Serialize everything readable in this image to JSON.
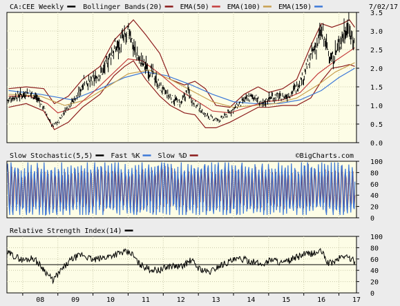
{
  "chart_data": [
    {
      "type": "line",
      "panel": "price",
      "symbol_label": "CA:CEE Weekly",
      "date_label": "7/02/17",
      "legend": [
        {
          "name": "Bollinger Bands(20)",
          "color": "#8b1a1a"
        },
        {
          "name": "EMA(50)",
          "color": "#c43c3c"
        },
        {
          "name": "EMA(100)",
          "color": "#c8a050"
        },
        {
          "name": "EMA(150)",
          "color": "#3c78d8"
        }
      ],
      "price_color": "#000000",
      "ylim": [
        0.0,
        3.5
      ],
      "y_ticks": [
        "3.5",
        "3.0",
        "2.5",
        "2.0",
        "1.5",
        "1.0",
        "0.5",
        "0.0"
      ],
      "x_range": [
        2007.55,
        2017.5
      ],
      "x_ticks": [
        "08",
        "09",
        "10",
        "11",
        "12",
        "13",
        "14",
        "15",
        "16",
        "17"
      ],
      "series": {
        "price": [
          [
            2007.6,
            1.15
          ],
          [
            2007.8,
            1.25
          ],
          [
            2008.0,
            1.3
          ],
          [
            2008.2,
            1.35
          ],
          [
            2008.4,
            1.2
          ],
          [
            2008.55,
            1.05
          ],
          [
            2008.7,
            0.7
          ],
          [
            2008.85,
            0.45
          ],
          [
            2009.0,
            0.55
          ],
          [
            2009.2,
            0.85
          ],
          [
            2009.4,
            1.1
          ],
          [
            2009.6,
            1.3
          ],
          [
            2009.75,
            1.7
          ],
          [
            2009.9,
            1.6
          ],
          [
            2010.1,
            1.75
          ],
          [
            2010.3,
            1.95
          ],
          [
            2010.5,
            2.35
          ],
          [
            2010.65,
            2.55
          ],
          [
            2010.8,
            2.7
          ],
          [
            2010.95,
            2.85
          ],
          [
            2011.05,
            3.05
          ],
          [
            2011.15,
            2.55
          ],
          [
            2011.3,
            2.25
          ],
          [
            2011.5,
            2.05
          ],
          [
            2011.7,
            1.85
          ],
          [
            2011.9,
            1.5
          ],
          [
            2012.1,
            1.3
          ],
          [
            2012.3,
            1.15
          ],
          [
            2012.5,
            1.05
          ],
          [
            2012.7,
            1.4
          ],
          [
            2012.85,
            1.1
          ],
          [
            2013.0,
            0.95
          ],
          [
            2013.2,
            0.75
          ],
          [
            2013.4,
            0.65
          ],
          [
            2013.6,
            0.6
          ],
          [
            2013.8,
            0.75
          ],
          [
            2014.0,
            0.9
          ],
          [
            2014.2,
            1.05
          ],
          [
            2014.4,
            1.2
          ],
          [
            2014.6,
            1.25
          ],
          [
            2014.8,
            1.0
          ],
          [
            2015.0,
            1.2
          ],
          [
            2015.2,
            1.25
          ],
          [
            2015.4,
            1.2
          ],
          [
            2015.6,
            1.3
          ],
          [
            2015.8,
            1.5
          ],
          [
            2016.0,
            1.8
          ],
          [
            2016.2,
            2.3
          ],
          [
            2016.35,
            2.6
          ],
          [
            2016.5,
            2.95
          ],
          [
            2016.65,
            2.6
          ],
          [
            2016.8,
            2.2
          ],
          [
            2016.95,
            2.5
          ],
          [
            2017.1,
            2.9
          ],
          [
            2017.25,
            3.15
          ],
          [
            2017.4,
            2.8
          ],
          [
            2017.45,
            2.6
          ]
        ],
        "ema50": [
          [
            2007.6,
            1.25
          ],
          [
            2008.2,
            1.25
          ],
          [
            2008.7,
            1.05
          ],
          [
            2009.0,
            0.8
          ],
          [
            2009.5,
            0.95
          ],
          [
            2010.0,
            1.35
          ],
          [
            2010.5,
            1.8
          ],
          [
            2011.0,
            2.25
          ],
          [
            2011.4,
            2.2
          ],
          [
            2011.9,
            1.85
          ],
          [
            2012.4,
            1.45
          ],
          [
            2012.9,
            1.15
          ],
          [
            2013.4,
            0.85
          ],
          [
            2013.9,
            0.8
          ],
          [
            2014.4,
            0.95
          ],
          [
            2014.9,
            1.1
          ],
          [
            2015.4,
            1.15
          ],
          [
            2015.9,
            1.35
          ],
          [
            2016.4,
            1.85
          ],
          [
            2016.9,
            2.2
          ],
          [
            2017.45,
            2.55
          ]
        ],
        "ema100": [
          [
            2007.6,
            1.3
          ],
          [
            2008.5,
            1.25
          ],
          [
            2009.2,
            1.0
          ],
          [
            2009.8,
            1.15
          ],
          [
            2010.5,
            1.55
          ],
          [
            2011.0,
            1.85
          ],
          [
            2011.6,
            1.95
          ],
          [
            2012.2,
            1.7
          ],
          [
            2012.8,
            1.4
          ],
          [
            2013.4,
            1.1
          ],
          [
            2014.0,
            0.95
          ],
          [
            2014.6,
            1.0
          ],
          [
            2015.2,
            1.05
          ],
          [
            2015.8,
            1.2
          ],
          [
            2016.4,
            1.55
          ],
          [
            2016.9,
            1.9
          ],
          [
            2017.45,
            2.15
          ]
        ],
        "ema150": [
          [
            2007.6,
            1.4
          ],
          [
            2008.5,
            1.3
          ],
          [
            2009.4,
            1.15
          ],
          [
            2010.2,
            1.45
          ],
          [
            2010.9,
            1.75
          ],
          [
            2011.5,
            1.9
          ],
          [
            2012.1,
            1.8
          ],
          [
            2012.8,
            1.55
          ],
          [
            2013.4,
            1.3
          ],
          [
            2014.0,
            1.1
          ],
          [
            2014.6,
            1.05
          ],
          [
            2015.3,
            1.05
          ],
          [
            2015.9,
            1.15
          ],
          [
            2016.5,
            1.4
          ],
          [
            2017.0,
            1.75
          ],
          [
            2017.45,
            2.0
          ]
        ],
        "bb_upper": [
          [
            2007.6,
            1.45
          ],
          [
            2008.1,
            1.5
          ],
          [
            2008.6,
            1.45
          ],
          [
            2008.9,
            1.05
          ],
          [
            2009.3,
            1.25
          ],
          [
            2009.7,
            1.7
          ],
          [
            2010.2,
            2.05
          ],
          [
            2010.6,
            2.75
          ],
          [
            2010.9,
            3.05
          ],
          [
            2011.15,
            3.3
          ],
          [
            2011.5,
            2.9
          ],
          [
            2011.9,
            2.4
          ],
          [
            2012.2,
            1.7
          ],
          [
            2012.6,
            1.55
          ],
          [
            2012.9,
            1.65
          ],
          [
            2013.2,
            1.45
          ],
          [
            2013.5,
            1.0
          ],
          [
            2013.9,
            0.95
          ],
          [
            2014.3,
            1.3
          ],
          [
            2014.7,
            1.5
          ],
          [
            2015.0,
            1.35
          ],
          [
            2015.4,
            1.45
          ],
          [
            2015.8,
            1.7
          ],
          [
            2016.2,
            2.6
          ],
          [
            2016.5,
            3.2
          ],
          [
            2016.8,
            3.1
          ],
          [
            2017.1,
            3.2
          ],
          [
            2017.3,
            3.3
          ],
          [
            2017.45,
            3.1
          ]
        ],
        "bb_lower": [
          [
            2007.6,
            0.95
          ],
          [
            2008.1,
            1.05
          ],
          [
            2008.6,
            0.85
          ],
          [
            2008.9,
            0.35
          ],
          [
            2009.3,
            0.55
          ],
          [
            2009.7,
            0.95
          ],
          [
            2010.2,
            1.3
          ],
          [
            2010.6,
            1.8
          ],
          [
            2010.9,
            2.05
          ],
          [
            2011.15,
            2.2
          ],
          [
            2011.5,
            1.7
          ],
          [
            2011.9,
            1.25
          ],
          [
            2012.2,
            1.0
          ],
          [
            2012.6,
            0.8
          ],
          [
            2012.9,
            0.75
          ],
          [
            2013.2,
            0.4
          ],
          [
            2013.5,
            0.4
          ],
          [
            2013.9,
            0.55
          ],
          [
            2014.3,
            0.75
          ],
          [
            2014.7,
            0.95
          ],
          [
            2015.0,
            0.95
          ],
          [
            2015.4,
            1.0
          ],
          [
            2015.8,
            1.0
          ],
          [
            2016.2,
            1.2
          ],
          [
            2016.5,
            1.65
          ],
          [
            2016.8,
            2.0
          ],
          [
            2017.1,
            2.05
          ],
          [
            2017.3,
            2.1
          ],
          [
            2017.45,
            2.05
          ]
        ]
      }
    },
    {
      "type": "line",
      "panel": "stochastic",
      "legend": [
        {
          "name": "Slow Stochastic(5,5)",
          "color": "#000000"
        },
        {
          "name": "Fast %K",
          "color": "#3c78d8"
        },
        {
          "name": "Slow %D",
          "color": "#8b1a1a"
        }
      ],
      "watermark": "©BigCharts.com",
      "ylim": [
        0,
        100
      ],
      "y_ticks": [
        "100",
        "80",
        "60",
        "40",
        "20",
        "0"
      ],
      "cycles_per_year": 10.5,
      "approximate_range": [
        5,
        98
      ]
    },
    {
      "type": "line",
      "panel": "rsi",
      "legend": [
        {
          "name": "Relative Strength Index(14)",
          "color": "#000000"
        }
      ],
      "ylim": [
        0,
        100
      ],
      "y_ticks": [
        "100",
        "80",
        "60",
        "40",
        "20",
        "0"
      ],
      "reference_line": 50,
      "series": [
        [
          2007.6,
          70
        ],
        [
          2008.0,
          58
        ],
        [
          2008.3,
          62
        ],
        [
          2008.6,
          42
        ],
        [
          2008.85,
          22
        ],
        [
          2009.1,
          40
        ],
        [
          2009.4,
          60
        ],
        [
          2009.7,
          68
        ],
        [
          2010.0,
          58
        ],
        [
          2010.3,
          62
        ],
        [
          2010.6,
          68
        ],
        [
          2010.9,
          72
        ],
        [
          2011.1,
          70
        ],
        [
          2011.3,
          52
        ],
        [
          2011.6,
          42
        ],
        [
          2011.9,
          40
        ],
        [
          2012.2,
          48
        ],
        [
          2012.5,
          46
        ],
        [
          2012.8,
          58
        ],
        [
          2013.0,
          44
        ],
        [
          2013.3,
          36
        ],
        [
          2013.6,
          48
        ],
        [
          2013.9,
          56
        ],
        [
          2014.2,
          60
        ],
        [
          2014.5,
          56
        ],
        [
          2014.8,
          50
        ],
        [
          2015.1,
          60
        ],
        [
          2015.4,
          52
        ],
        [
          2015.7,
          60
        ],
        [
          2016.0,
          68
        ],
        [
          2016.3,
          70
        ],
        [
          2016.5,
          74
        ],
        [
          2016.7,
          52
        ],
        [
          2016.9,
          56
        ],
        [
          2017.1,
          66
        ],
        [
          2017.3,
          62
        ],
        [
          2017.45,
          55
        ]
      ]
    }
  ]
}
